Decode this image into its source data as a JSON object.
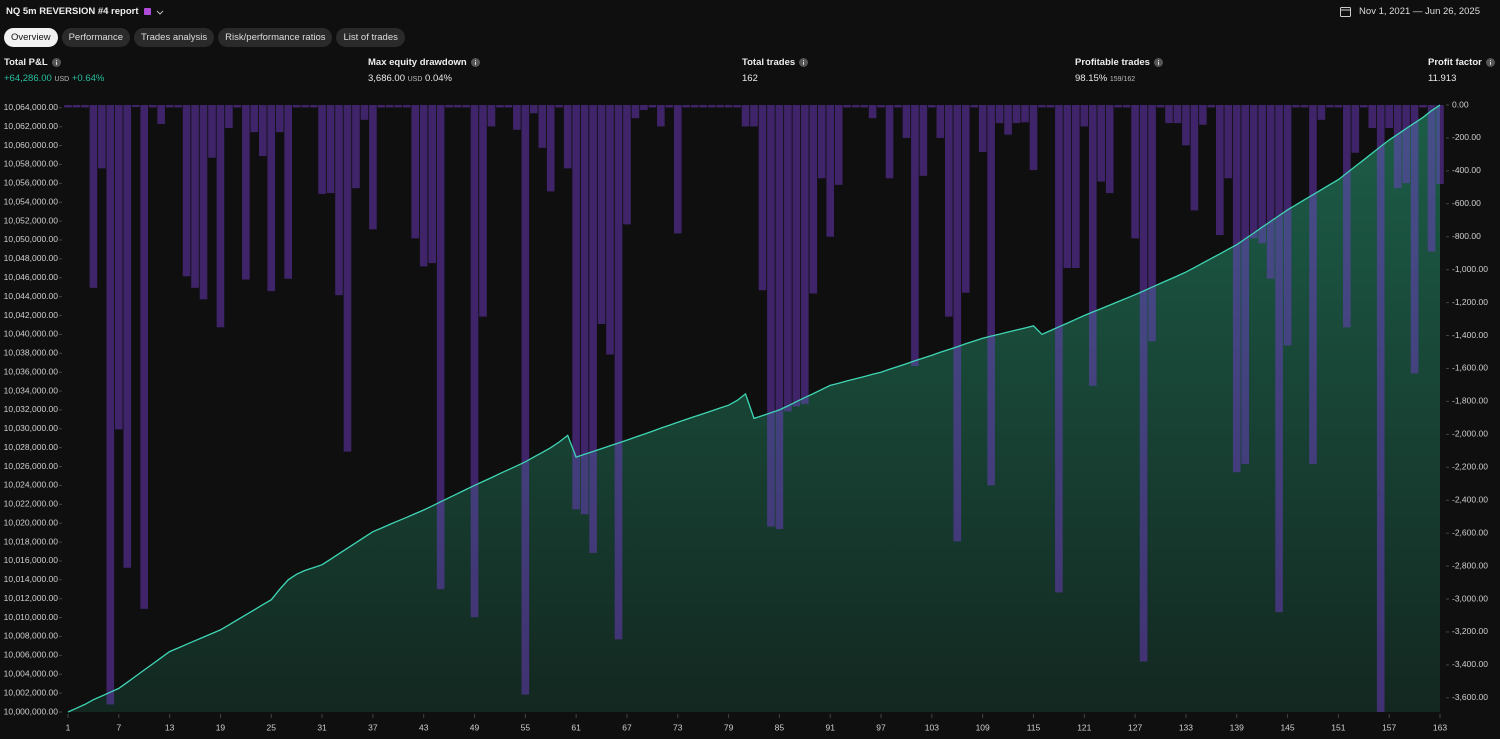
{
  "header": {
    "title": "NQ 5m REVERSION #4 report",
    "date_range": "Nov 1, 2021 — Jun 26, 2025"
  },
  "tabs": [
    "Overview",
    "Performance",
    "Trades analysis",
    "Risk/performance ratios",
    "List of trades"
  ],
  "stats": [
    {
      "label": "Total P&L",
      "value": "+64,286.00",
      "unit": "USD",
      "change": "+0.64%"
    },
    {
      "label": "Max equity drawdown",
      "value": "3,686.00",
      "unit": "USD",
      "change": "0.04%"
    },
    {
      "label": "Total trades",
      "value": "162"
    },
    {
      "label": "Profitable trades",
      "value": "98.15%",
      "detail": "159/162"
    },
    {
      "label": "Profit factor",
      "value": "11.913"
    }
  ],
  "chart_data": {
    "type": "combo",
    "x": [
      1,
      2,
      3,
      4,
      5,
      6,
      7,
      8,
      9,
      10,
      11,
      12,
      13,
      14,
      15,
      16,
      17,
      18,
      19,
      20,
      21,
      22,
      23,
      24,
      25,
      26,
      27,
      28,
      29,
      30,
      31,
      32,
      33,
      34,
      35,
      36,
      37,
      38,
      39,
      40,
      41,
      42,
      43,
      44,
      45,
      46,
      47,
      48,
      49,
      50,
      51,
      52,
      53,
      54,
      55,
      56,
      57,
      58,
      59,
      60,
      61,
      62,
      63,
      64,
      65,
      66,
      67,
      68,
      69,
      70,
      71,
      72,
      73,
      74,
      75,
      76,
      77,
      78,
      79,
      80,
      81,
      82,
      83,
      84,
      85,
      86,
      87,
      88,
      89,
      90,
      91,
      92,
      93,
      94,
      95,
      96,
      97,
      98,
      99,
      100,
      101,
      102,
      103,
      104,
      105,
      106,
      107,
      108,
      109,
      110,
      111,
      112,
      113,
      114,
      115,
      116,
      117,
      118,
      119,
      120,
      121,
      122,
      123,
      124,
      125,
      126,
      127,
      128,
      129,
      130,
      131,
      132,
      133,
      134,
      135,
      136,
      137,
      138,
      139,
      140,
      141,
      142,
      143,
      144,
      145,
      146,
      147,
      148,
      149,
      150,
      151,
      152,
      153,
      154,
      155,
      156,
      157,
      158,
      159,
      160,
      161,
      162,
      163
    ],
    "xlim": [
      1,
      163
    ],
    "xticks": [
      1,
      7,
      13,
      19,
      25,
      31,
      37,
      43,
      49,
      55,
      61,
      67,
      73,
      79,
      85,
      91,
      97,
      103,
      109,
      115,
      121,
      127,
      133,
      139,
      145,
      151,
      157,
      163
    ],
    "ylim": [
      10000000,
      10064300
    ],
    "yticks": [
      {
        "value": 10064000,
        "label": "10,064,000.00"
      },
      {
        "value": 10062000,
        "label": "10,062,000.00"
      },
      {
        "value": 10060000,
        "label": "10,060,000.00"
      },
      {
        "value": 10058000,
        "label": "10,058,000.00"
      },
      {
        "value": 10056000,
        "label": "10,056,000.00"
      },
      {
        "value": 10054000,
        "label": "10,054,000.00"
      },
      {
        "value": 10052000,
        "label": "10,052,000.00"
      },
      {
        "value": 10050000,
        "label": "10,050,000.00"
      },
      {
        "value": 10048000,
        "label": "10,048,000.00"
      },
      {
        "value": 10046000,
        "label": "10,046,000.00"
      },
      {
        "value": 10044000,
        "label": "10,044,000.00"
      },
      {
        "value": 10042000,
        "label": "10,042,000.00"
      },
      {
        "value": 10040000,
        "label": "10,040,000.00"
      },
      {
        "value": 10038000,
        "label": "10,038,000.00"
      },
      {
        "value": 10036000,
        "label": "10,036,000.00"
      },
      {
        "value": 10034000,
        "label": "10,034,000.00"
      },
      {
        "value": 10032000,
        "label": "10,032,000.00"
      },
      {
        "value": 10030000,
        "label": "10,030,000.00"
      },
      {
        "value": 10028000,
        "label": "10,028,000.00"
      },
      {
        "value": 10026000,
        "label": "10,026,000.00"
      },
      {
        "value": 10024000,
        "label": "10,024,000.00"
      },
      {
        "value": 10022000,
        "label": "10,022,000.00"
      },
      {
        "value": 10020000,
        "label": "10,020,000.00"
      },
      {
        "value": 10018000,
        "label": "10,018,000.00"
      },
      {
        "value": 10016000,
        "label": "10,016,000.00"
      },
      {
        "value": 10014000,
        "label": "10,014,000.00"
      },
      {
        "value": 10012000,
        "label": "10,012,000.00"
      },
      {
        "value": 10010000,
        "label": "10,010,000.00"
      },
      {
        "value": 10008000,
        "label": "10,008,000.00"
      },
      {
        "value": 10006000,
        "label": "10,006,000.00"
      },
      {
        "value": 10004000,
        "label": "10,004,000.00"
      },
      {
        "value": 10002000,
        "label": "10,002,000.00"
      },
      {
        "value": 10000000,
        "label": "10,000,000.00"
      }
    ],
    "y2lim": [
      -3686,
      0
    ],
    "y2ticks": [
      {
        "value": 0,
        "label": "0.00"
      },
      {
        "value": -200,
        "label": "-200.00"
      },
      {
        "value": -400,
        "label": "-400.00"
      },
      {
        "value": -600,
        "label": "-600.00"
      },
      {
        "value": -800,
        "label": "-800.00"
      },
      {
        "value": -1000,
        "label": "-1,000.00"
      },
      {
        "value": -1200,
        "label": "-1,200.00"
      },
      {
        "value": -1400,
        "label": "-1,400.00"
      },
      {
        "value": -1600,
        "label": "-1,600.00"
      },
      {
        "value": -1800,
        "label": "-1,800.00"
      },
      {
        "value": -2000,
        "label": "-2,000.00"
      },
      {
        "value": -2200,
        "label": "-2,200.00"
      },
      {
        "value": -2400,
        "label": "-2,400.00"
      },
      {
        "value": -2600,
        "label": "-2,600.00"
      },
      {
        "value": -2800,
        "label": "-2,800.00"
      },
      {
        "value": -3000,
        "label": "-3,000.00"
      },
      {
        "value": -3200,
        "label": "-3,200.00"
      },
      {
        "value": -3400,
        "label": "-3,400.00"
      },
      {
        "value": -3600,
        "label": "-3,600.00"
      }
    ],
    "series": [
      {
        "kind": "bar",
        "axis": "y2",
        "color": "#7a3fd6",
        "values": [
          -15,
          -15,
          -15,
          -1110,
          -385,
          -3640,
          -1970,
          -2810,
          -10,
          -3060,
          -15,
          -115,
          -15,
          -15,
          -1040,
          -1110,
          -1180,
          -320,
          -1350,
          -140,
          -15,
          -1060,
          -165,
          -310,
          -1130,
          -165,
          -1055,
          -15,
          -15,
          -15,
          -540,
          -535,
          -1155,
          -2105,
          -505,
          -90,
          -755,
          -15,
          -15,
          -15,
          -15,
          -810,
          -980,
          -960,
          -2940,
          -15,
          -15,
          -15,
          -3110,
          -1285,
          -130,
          -15,
          -15,
          -150,
          -3580,
          -50,
          -260,
          -525,
          -15,
          -385,
          -2455,
          -2485,
          -2720,
          -1330,
          -1515,
          -3245,
          -725,
          -80,
          -30,
          -15,
          -130,
          -15,
          -780,
          -15,
          -15,
          -15,
          -15,
          -15,
          -15,
          -15,
          -130,
          -130,
          -1125,
          -2560,
          -2575,
          -1860,
          -1830,
          -1815,
          -1145,
          -445,
          -800,
          -485,
          -15,
          -15,
          -15,
          -80,
          -15,
          -445,
          -15,
          -200,
          -1585,
          -430,
          -15,
          -200,
          -1285,
          -2650,
          -1140,
          -15,
          -285,
          -2310,
          -110,
          -180,
          -110,
          -105,
          -395,
          -15,
          -15,
          -2960,
          -990,
          -990,
          -130,
          -1705,
          -465,
          -535,
          -15,
          -15,
          -810,
          -3380,
          -1435,
          -15,
          -110,
          -110,
          -245,
          -640,
          -120,
          -15,
          -790,
          -445,
          -2230,
          -2180,
          -810,
          -840,
          -1055,
          -3080,
          -1460,
          -15,
          -15,
          -2180,
          -90,
          -15,
          -15,
          -1350,
          -290,
          -15,
          -140,
          -3686,
          -140,
          -505,
          -475,
          -1630,
          -15,
          -890,
          -480
        ]
      },
      {
        "kind": "area",
        "color": "#3fd6b4",
        "values": [
          10000000,
          10000400,
          10000800,
          10001300,
          10001700,
          10002100,
          10002500,
          10003150,
          10003800,
          10004450,
          10005100,
          10005750,
          10006400,
          10006780,
          10007170,
          10007550,
          10007930,
          10008320,
          10008700,
          10009230,
          10009770,
          10010300,
          10010830,
          10011370,
          10011900,
          10013000,
          10014000,
          10014600,
          10015000,
          10015300,
          10015600,
          10016180,
          10016770,
          10017350,
          10017930,
          10018520,
          10019100,
          10019480,
          10019870,
          10020250,
          10020630,
          10021020,
          10021400,
          10021830,
          10022270,
          10022700,
          10023130,
          10023570,
          10024000,
          10024420,
          10024830,
          10025250,
          10025670,
          10026080,
          10026500,
          10027000,
          10027500,
          10028000,
          10028600,
          10029300,
          10027000,
          10027300,
          10027600,
          10027900,
          10028200,
          10028500,
          10028800,
          10029120,
          10029430,
          10029750,
          10030070,
          10030380,
          10030700,
          10031000,
          10031300,
          10031600,
          10031900,
          10032200,
          10032500,
          10033000,
          10033700,
          10031100,
          10031400,
          10031700,
          10032000,
          10032430,
          10032870,
          10033300,
          10033730,
          10034170,
          10034600,
          10034830,
          10035070,
          10035300,
          10035530,
          10035770,
          10036000,
          10036300,
          10036600,
          10036900,
          10037200,
          10037500,
          10037800,
          10038100,
          10038400,
          10038700,
          10039000,
          10039300,
          10039600,
          10039820,
          10040030,
          10040250,
          10040470,
          10040680,
          10040900,
          10040000,
          10040400,
          10040800,
          10041200,
          10041600,
          10042000,
          10042370,
          10042730,
          10043100,
          10043470,
          10043830,
          10044200,
          10044600,
          10045000,
          10045400,
          10045800,
          10046200,
          10046600,
          10047080,
          10047570,
          10048050,
          10048530,
          10049020,
          10049500,
          10050120,
          10050730,
          10051350,
          10051970,
          10052580,
          10053200,
          10053730,
          10054270,
          10054800,
          10055330,
          10055870,
          10056400,
          10057100,
          10057800,
          10058500,
          10059200,
          10059900,
          10060600,
          10061200,
          10061800,
          10062400,
          10063000,
          10063700,
          10064286
        ]
      }
    ]
  }
}
